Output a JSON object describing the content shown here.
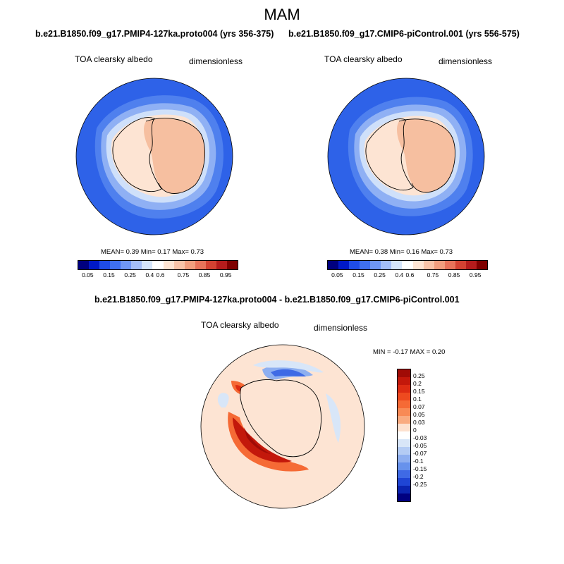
{
  "title": "MAM",
  "panels": [
    {
      "subtitle": "b.e21.B1850.f09_g17.PMIP4-127ka.proto004 (yrs 356-375)",
      "left_label": "TOA clearsky albedo",
      "right_label": "dimensionless",
      "stats": "MEAN=   0.39  Min=   0.17  Max=   0.73"
    },
    {
      "subtitle": "b.e21.B1850.f09_g17.CMIP6-piControl.001 (yrs 556-575)",
      "left_label": "TOA clearsky albedo",
      "right_label": "dimensionless",
      "stats": "MEAN=   0.38  Min=   0.16  Max=   0.73"
    }
  ],
  "diff": {
    "subtitle": "b.e21.B1850.f09_g17.PMIP4-127ka.proto004 - b.e21.B1850.f09_g17.CMIP6-piControl.001",
    "left_label": "TOA clearsky albedo",
    "right_label": "dimensionless",
    "stats": "MIN =  -0.17 MAX =   0.20"
  },
  "colorbar_abs": {
    "ticks": [
      "0.05",
      "0.15",
      "0.25",
      "0.4",
      "0.6",
      "0.75",
      "0.85",
      "0.95"
    ],
    "colors": [
      "#00007f",
      "#0019c8",
      "#1f4ce8",
      "#3f6ff0",
      "#6f96f4",
      "#a3bdf7",
      "#d4e4fa",
      "#ffffff",
      "#fde4d3",
      "#f8c3a8",
      "#f19e7e",
      "#e8735a",
      "#d44232",
      "#b51c1c",
      "#7f0000"
    ]
  },
  "colorbar_diff": {
    "ticks": [
      "0.25",
      "0.2",
      "0.15",
      "0.1",
      "0.07",
      "0.05",
      "0.03",
      "0",
      "-0.03",
      "-0.05",
      "-0.07",
      "-0.1",
      "-0.15",
      "-0.2",
      "-0.25"
    ],
    "colors": [
      "#a00b06",
      "#c3180b",
      "#dd2c13",
      "#ee4a1f",
      "#f56a35",
      "#f88a55",
      "#f9ab80",
      "#fde1cf",
      "#ffffff",
      "#d8e6f8",
      "#b4ccf4",
      "#8eaff0",
      "#6792ec",
      "#3f6ae5",
      "#1f45d4",
      "#0b24b0",
      "#000080"
    ]
  }
}
